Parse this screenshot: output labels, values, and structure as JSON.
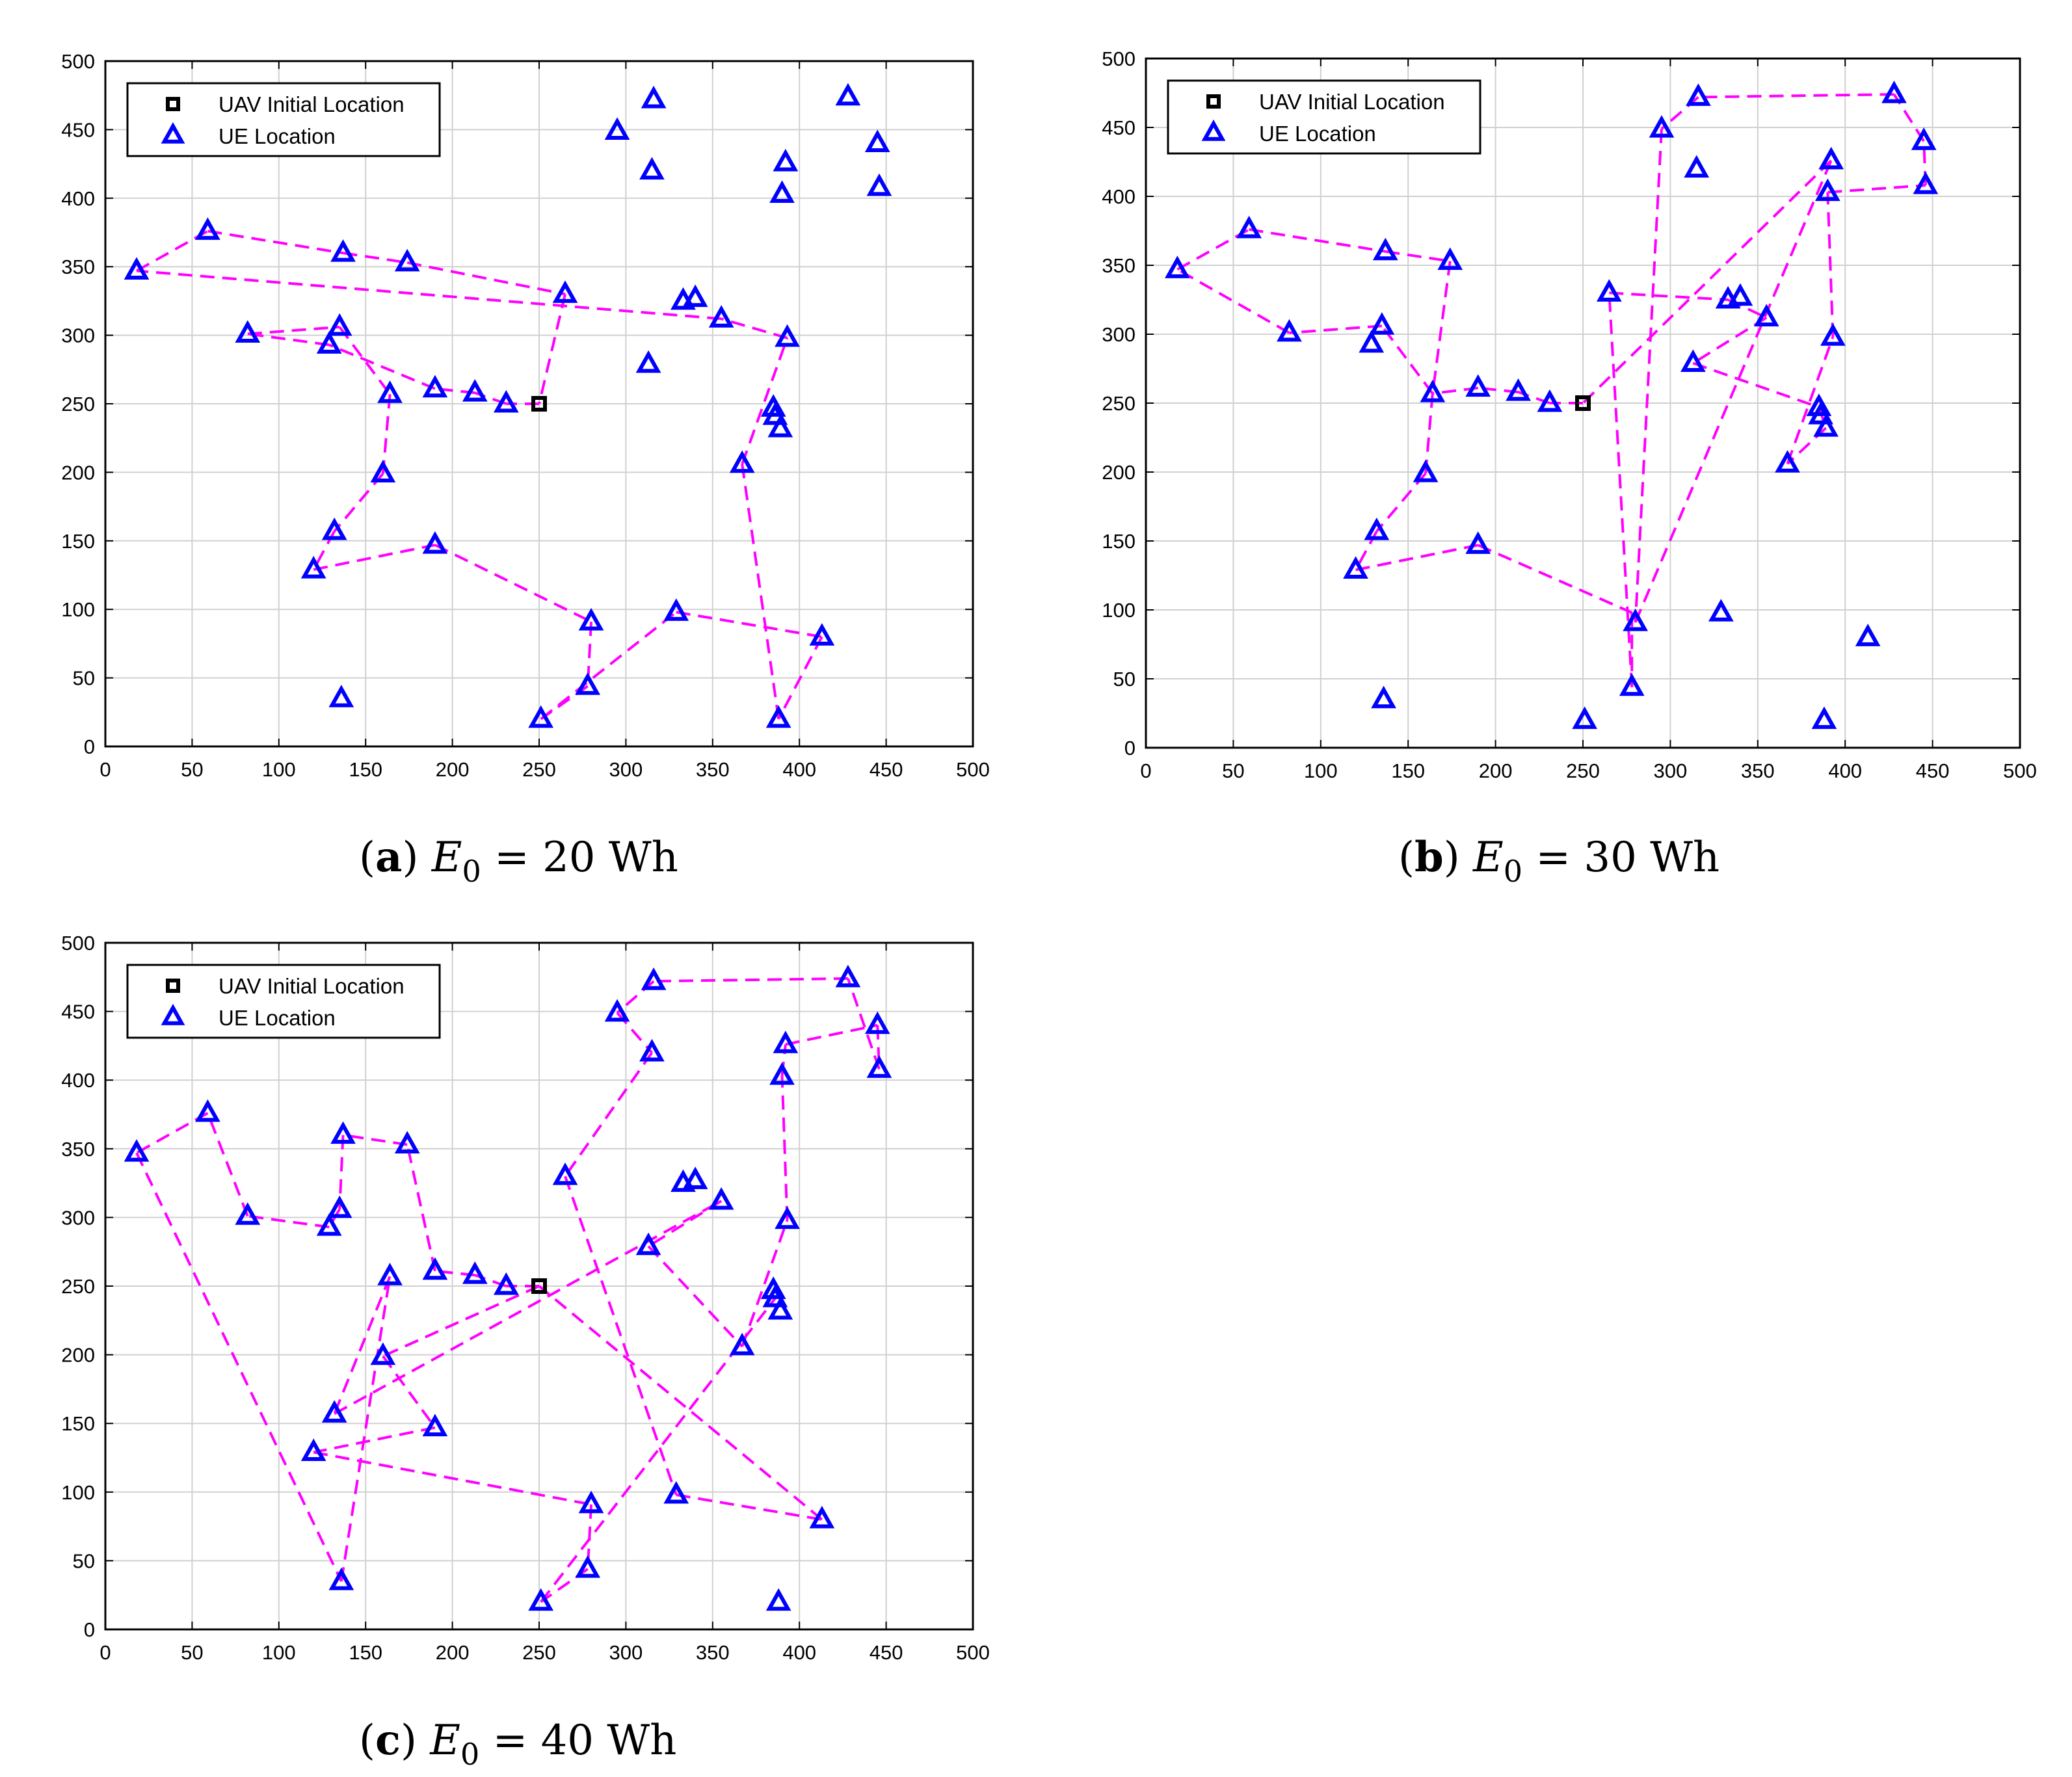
{
  "chart_data": [
    {
      "type": "scatter",
      "panel_label": "a",
      "caption": {
        "label": "a",
        "symbol": "E",
        "subscript": "0",
        "equals": "=",
        "value": "20 Wh"
      },
      "xlim": [
        0,
        500
      ],
      "ylim": [
        0,
        500
      ],
      "xticks": [
        0,
        50,
        100,
        150,
        200,
        250,
        300,
        350,
        400,
        450,
        500
      ],
      "yticks": [
        0,
        50,
        100,
        150,
        200,
        250,
        300,
        350,
        400,
        450,
        500
      ],
      "grid": true,
      "legend": {
        "position": "top-left",
        "entries": [
          "UAV Initial Location",
          "UE Location"
        ]
      },
      "uav_initial": [
        250,
        250
      ],
      "ue_points": [
        [
          18,
          347
        ],
        [
          59,
          376
        ],
        [
          82,
          301
        ],
        [
          129,
          293
        ],
        [
          135,
          306
        ],
        [
          137,
          360
        ],
        [
          136,
          35
        ],
        [
          174,
          353
        ],
        [
          164,
          257
        ],
        [
          160,
          199
        ],
        [
          132,
          157
        ],
        [
          120,
          129
        ],
        [
          190,
          147
        ],
        [
          190,
          261
        ],
        [
          213,
          258
        ],
        [
          231,
          250
        ],
        [
          265,
          330
        ],
        [
          251,
          20
        ],
        [
          280,
          91
        ],
        [
          278,
          44
        ],
        [
          295,
          449
        ],
        [
          316,
          472
        ],
        [
          315,
          420
        ],
        [
          313,
          279
        ],
        [
          329,
          98
        ],
        [
          333,
          325
        ],
        [
          340,
          327
        ],
        [
          355,
          312
        ],
        [
          367,
          206
        ],
        [
          385,
          247
        ],
        [
          386,
          241
        ],
        [
          389,
          232
        ],
        [
          390,
          403
        ],
        [
          392,
          426
        ],
        [
          393,
          298
        ],
        [
          388,
          20
        ],
        [
          413,
          80
        ],
        [
          428,
          474
        ],
        [
          445,
          440
        ],
        [
          446,
          408
        ]
      ],
      "trajectory": [
        [
          250,
          250
        ],
        [
          231,
          250
        ],
        [
          213,
          258
        ],
        [
          190,
          261
        ],
        [
          129,
          293
        ],
        [
          82,
          301
        ],
        [
          135,
          306
        ],
        [
          164,
          257
        ],
        [
          160,
          199
        ],
        [
          132,
          157
        ],
        [
          120,
          129
        ],
        [
          190,
          147
        ],
        [
          280,
          91
        ],
        [
          278,
          44
        ],
        [
          251,
          20
        ],
        [
          329,
          98
        ],
        [
          413,
          80
        ],
        [
          388,
          20
        ],
        [
          367,
          206
        ],
        [
          393,
          298
        ],
        [
          355,
          312
        ],
        [
          18,
          347
        ],
        [
          59,
          376
        ],
        [
          137,
          360
        ],
        [
          174,
          353
        ],
        [
          265,
          330
        ],
        [
          250,
          250
        ]
      ]
    },
    {
      "type": "scatter",
      "panel_label": "b",
      "caption": {
        "label": "b",
        "symbol": "E",
        "subscript": "0",
        "equals": "=",
        "value": "30 Wh"
      },
      "xlim": [
        0,
        500
      ],
      "ylim": [
        0,
        500
      ],
      "xticks": [
        0,
        50,
        100,
        150,
        200,
        250,
        300,
        350,
        400,
        450,
        500
      ],
      "yticks": [
        0,
        50,
        100,
        150,
        200,
        250,
        300,
        350,
        400,
        450,
        500
      ],
      "grid": true,
      "legend": {
        "position": "top-left",
        "entries": [
          "UAV Initial Location",
          "UE Location"
        ]
      },
      "uav_initial": [
        250,
        250
      ],
      "ue_points": [
        [
          18,
          347
        ],
        [
          59,
          376
        ],
        [
          82,
          301
        ],
        [
          129,
          293
        ],
        [
          135,
          306
        ],
        [
          137,
          360
        ],
        [
          136,
          35
        ],
        [
          174,
          353
        ],
        [
          164,
          257
        ],
        [
          160,
          199
        ],
        [
          132,
          157
        ],
        [
          120,
          129
        ],
        [
          190,
          147
        ],
        [
          190,
          261
        ],
        [
          213,
          258
        ],
        [
          231,
          250
        ],
        [
          265,
          330
        ],
        [
          251,
          20
        ],
        [
          280,
          91
        ],
        [
          278,
          44
        ],
        [
          295,
          449
        ],
        [
          316,
          472
        ],
        [
          315,
          420
        ],
        [
          313,
          279
        ],
        [
          329,
          98
        ],
        [
          333,
          325
        ],
        [
          340,
          327
        ],
        [
          355,
          312
        ],
        [
          367,
          206
        ],
        [
          385,
          247
        ],
        [
          386,
          241
        ],
        [
          389,
          232
        ],
        [
          390,
          403
        ],
        [
          392,
          426
        ],
        [
          393,
          298
        ],
        [
          388,
          20
        ],
        [
          413,
          80
        ],
        [
          428,
          474
        ],
        [
          445,
          440
        ],
        [
          446,
          408
        ]
      ],
      "trajectory": [
        [
          250,
          250
        ],
        [
          231,
          250
        ],
        [
          213,
          258
        ],
        [
          190,
          261
        ],
        [
          164,
          257
        ],
        [
          135,
          306
        ],
        [
          82,
          301
        ],
        [
          18,
          347
        ],
        [
          59,
          376
        ],
        [
          137,
          360
        ],
        [
          174,
          353
        ],
        [
          164,
          257
        ],
        [
          160,
          199
        ],
        [
          132,
          157
        ],
        [
          120,
          129
        ],
        [
          190,
          147
        ],
        [
          278,
          98
        ],
        [
          278,
          44
        ],
        [
          265,
          330
        ],
        [
          333,
          325
        ],
        [
          355,
          312
        ],
        [
          313,
          279
        ],
        [
          385,
          247
        ],
        [
          389,
          232
        ],
        [
          367,
          206
        ],
        [
          393,
          298
        ],
        [
          390,
          403
        ],
        [
          446,
          408
        ],
        [
          445,
          440
        ],
        [
          428,
          474
        ],
        [
          316,
          472
        ],
        [
          295,
          449
        ],
        [
          280,
          91
        ],
        [
          392,
          426
        ],
        [
          250,
          250
        ]
      ]
    },
    {
      "type": "scatter",
      "panel_label": "c",
      "caption": {
        "label": "c",
        "symbol": "E",
        "subscript": "0",
        "equals": "=",
        "value": "40 Wh"
      },
      "xlim": [
        0,
        500
      ],
      "ylim": [
        0,
        500
      ],
      "xticks": [
        0,
        50,
        100,
        150,
        200,
        250,
        300,
        350,
        400,
        450,
        500
      ],
      "yticks": [
        0,
        50,
        100,
        150,
        200,
        250,
        300,
        350,
        400,
        450,
        500
      ],
      "grid": true,
      "legend": {
        "position": "top-left",
        "entries": [
          "UAV Initial Location",
          "UE Location"
        ]
      },
      "uav_initial": [
        250,
        250
      ],
      "ue_points": [
        [
          18,
          347
        ],
        [
          59,
          376
        ],
        [
          82,
          301
        ],
        [
          129,
          293
        ],
        [
          135,
          306
        ],
        [
          137,
          360
        ],
        [
          136,
          35
        ],
        [
          174,
          353
        ],
        [
          164,
          257
        ],
        [
          160,
          199
        ],
        [
          132,
          157
        ],
        [
          120,
          129
        ],
        [
          190,
          147
        ],
        [
          190,
          261
        ],
        [
          213,
          258
        ],
        [
          231,
          250
        ],
        [
          265,
          330
        ],
        [
          251,
          20
        ],
        [
          280,
          91
        ],
        [
          278,
          44
        ],
        [
          295,
          449
        ],
        [
          316,
          472
        ],
        [
          315,
          420
        ],
        [
          313,
          279
        ],
        [
          329,
          98
        ],
        [
          333,
          325
        ],
        [
          340,
          327
        ],
        [
          355,
          312
        ],
        [
          367,
          206
        ],
        [
          385,
          247
        ],
        [
          386,
          241
        ],
        [
          389,
          232
        ],
        [
          390,
          403
        ],
        [
          392,
          426
        ],
        [
          393,
          298
        ],
        [
          388,
          20
        ],
        [
          413,
          80
        ],
        [
          428,
          474
        ],
        [
          445,
          440
        ],
        [
          446,
          408
        ]
      ],
      "trajectory": [
        [
          250,
          250
        ],
        [
          231,
          250
        ],
        [
          213,
          258
        ],
        [
          190,
          261
        ],
        [
          174,
          353
        ],
        [
          137,
          360
        ],
        [
          135,
          306
        ],
        [
          129,
          293
        ],
        [
          82,
          301
        ],
        [
          59,
          376
        ],
        [
          18,
          347
        ],
        [
          136,
          35
        ],
        [
          164,
          257
        ],
        [
          132,
          157
        ],
        [
          355,
          312
        ],
        [
          313,
          279
        ],
        [
          367,
          206
        ],
        [
          393,
          298
        ],
        [
          390,
          403
        ],
        [
          392,
          426
        ],
        [
          445,
          440
        ],
        [
          446,
          408
        ],
        [
          428,
          474
        ],
        [
          316,
          472
        ],
        [
          295,
          449
        ],
        [
          315,
          420
        ],
        [
          265,
          330
        ],
        [
          329,
          98
        ],
        [
          413,
          80
        ],
        [
          250,
          250
        ],
        [
          160,
          199
        ],
        [
          190,
          147
        ],
        [
          120,
          129
        ],
        [
          280,
          91
        ],
        [
          278,
          44
        ],
        [
          251,
          20
        ],
        [
          386,
          241
        ]
      ]
    }
  ]
}
